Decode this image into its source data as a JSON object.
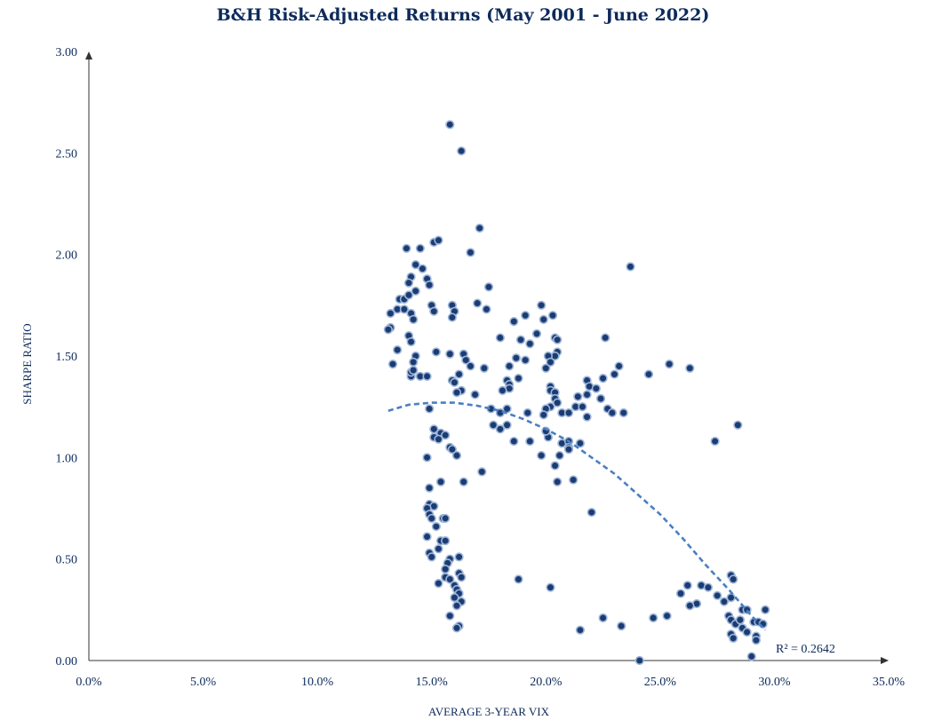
{
  "chart_data": {
    "type": "scatter",
    "title": "B&H Risk-Adjusted Returns (May 2001 - June 2022)",
    "xlabel": "AVERAGE 3-YEAR VIX",
    "ylabel": "SHARPE RATIO",
    "xlim": [
      0,
      35
    ],
    "ylim": [
      0,
      3
    ],
    "xticks": [
      "0.0%",
      "5.0%",
      "10.0%",
      "15.0%",
      "20.0%",
      "25.0%",
      "30.0%",
      "35.0%"
    ],
    "yticks": [
      "0.00",
      "0.50",
      "1.00",
      "1.50",
      "2.00",
      "2.50",
      "3.00"
    ],
    "annotation": "R² = 0.2642",
    "trendline": {
      "style": "dashed",
      "color": "#4a7fc2",
      "points": [
        [
          13.1,
          1.23
        ],
        [
          14,
          1.26
        ],
        [
          15,
          1.27
        ],
        [
          16,
          1.27
        ],
        [
          17,
          1.255
        ],
        [
          18,
          1.23
        ],
        [
          19,
          1.19
        ],
        [
          20,
          1.14
        ],
        [
          21,
          1.08
        ],
        [
          22,
          1.0
        ],
        [
          23,
          0.92
        ],
        [
          24,
          0.82
        ],
        [
          25,
          0.72
        ],
        [
          26,
          0.6
        ],
        [
          27,
          0.47
        ],
        [
          28,
          0.35
        ],
        [
          29,
          0.22
        ],
        [
          29.6,
          0.15
        ]
      ]
    },
    "point_color": "#1b3c73",
    "points": [
      [
        15.8,
        2.64
      ],
      [
        16.3,
        2.51
      ],
      [
        17.1,
        2.13
      ],
      [
        15.1,
        2.06
      ],
      [
        15.3,
        2.07
      ],
      [
        13.9,
        2.03
      ],
      [
        14.5,
        2.03
      ],
      [
        16.7,
        2.01
      ],
      [
        23.7,
        1.94
      ],
      [
        14.3,
        1.95
      ],
      [
        14.6,
        1.93
      ],
      [
        14.1,
        1.89
      ],
      [
        14.0,
        1.86
      ],
      [
        14.8,
        1.88
      ],
      [
        14.9,
        1.85
      ],
      [
        14.3,
        1.82
      ],
      [
        17.5,
        1.84
      ],
      [
        13.6,
        1.78
      ],
      [
        13.8,
        1.78
      ],
      [
        14.0,
        1.8
      ],
      [
        13.5,
        1.73
      ],
      [
        13.8,
        1.73
      ],
      [
        14.1,
        1.71
      ],
      [
        13.2,
        1.71
      ],
      [
        14.2,
        1.68
      ],
      [
        15.0,
        1.75
      ],
      [
        15.1,
        1.72
      ],
      [
        15.9,
        1.75
      ],
      [
        16.0,
        1.72
      ],
      [
        15.9,
        1.69
      ],
      [
        17.0,
        1.76
      ],
      [
        17.4,
        1.73
      ],
      [
        19.8,
        1.75
      ],
      [
        20.3,
        1.7
      ],
      [
        19.1,
        1.7
      ],
      [
        18.6,
        1.67
      ],
      [
        19.9,
        1.68
      ],
      [
        13.2,
        1.64
      ],
      [
        13.1,
        1.63
      ],
      [
        14.0,
        1.6
      ],
      [
        14.1,
        1.57
      ],
      [
        13.5,
        1.53
      ],
      [
        14.3,
        1.5
      ],
      [
        14.2,
        1.47
      ],
      [
        13.3,
        1.46
      ],
      [
        14.5,
        1.4
      ],
      [
        14.8,
        1.4
      ],
      [
        14.1,
        1.4
      ],
      [
        14.1,
        1.42
      ],
      [
        14.2,
        1.43
      ],
      [
        15.2,
        1.52
      ],
      [
        15.8,
        1.51
      ],
      [
        16.4,
        1.51
      ],
      [
        16.5,
        1.48
      ],
      [
        17.3,
        1.44
      ],
      [
        16.7,
        1.45
      ],
      [
        18.0,
        1.59
      ],
      [
        18.9,
        1.58
      ],
      [
        19.3,
        1.56
      ],
      [
        19.6,
        1.61
      ],
      [
        20.4,
        1.59
      ],
      [
        20.5,
        1.58
      ],
      [
        20.5,
        1.52
      ],
      [
        20.4,
        1.5
      ],
      [
        20.1,
        1.5
      ],
      [
        19.1,
        1.48
      ],
      [
        18.7,
        1.49
      ],
      [
        18.4,
        1.45
      ],
      [
        20.2,
        1.47
      ],
      [
        20.0,
        1.44
      ],
      [
        22.6,
        1.59
      ],
      [
        23.2,
        1.45
      ],
      [
        23.0,
        1.41
      ],
      [
        24.5,
        1.41
      ],
      [
        25.4,
        1.46
      ],
      [
        26.3,
        1.44
      ],
      [
        16.2,
        1.41
      ],
      [
        15.9,
        1.38
      ],
      [
        16.0,
        1.37
      ],
      [
        16.3,
        1.33
      ],
      [
        16.1,
        1.32
      ],
      [
        16.9,
        1.31
      ],
      [
        18.3,
        1.38
      ],
      [
        18.4,
        1.36
      ],
      [
        18.4,
        1.34
      ],
      [
        18.8,
        1.39
      ],
      [
        18.1,
        1.33
      ],
      [
        20.2,
        1.35
      ],
      [
        20.2,
        1.33
      ],
      [
        20.4,
        1.32
      ],
      [
        20.4,
        1.29
      ],
      [
        21.8,
        1.38
      ],
      [
        21.9,
        1.35
      ],
      [
        22.2,
        1.34
      ],
      [
        22.5,
        1.39
      ],
      [
        21.8,
        1.31
      ],
      [
        21.4,
        1.3
      ],
      [
        22.4,
        1.29
      ],
      [
        20.5,
        1.27
      ],
      [
        20.2,
        1.25
      ],
      [
        20.7,
        1.22
      ],
      [
        21.0,
        1.22
      ],
      [
        21.3,
        1.25
      ],
      [
        21.6,
        1.25
      ],
      [
        22.7,
        1.24
      ],
      [
        22.9,
        1.22
      ],
      [
        23.4,
        1.22
      ],
      [
        20.0,
        1.24
      ],
      [
        19.9,
        1.21
      ],
      [
        19.2,
        1.22
      ],
      [
        18.3,
        1.24
      ],
      [
        18.0,
        1.22
      ],
      [
        17.6,
        1.24
      ],
      [
        17.7,
        1.16
      ],
      [
        18.0,
        1.14
      ],
      [
        18.3,
        1.16
      ],
      [
        18.6,
        1.08
      ],
      [
        19.3,
        1.08
      ],
      [
        20.1,
        1.1
      ],
      [
        20.0,
        1.13
      ],
      [
        20.7,
        1.07
      ],
      [
        21.0,
        1.08
      ],
      [
        21.0,
        1.05
      ],
      [
        21.5,
        1.07
      ],
      [
        21.8,
        1.2
      ],
      [
        21.0,
        1.04
      ],
      [
        20.6,
        1.01
      ],
      [
        20.4,
        0.96
      ],
      [
        19.8,
        1.01
      ],
      [
        20.5,
        0.88
      ],
      [
        21.2,
        0.89
      ],
      [
        27.4,
        1.08
      ],
      [
        28.4,
        1.16
      ],
      [
        14.9,
        1.24
      ],
      [
        15.1,
        1.14
      ],
      [
        15.1,
        1.1
      ],
      [
        15.4,
        1.12
      ],
      [
        15.6,
        1.11
      ],
      [
        15.3,
        1.09
      ],
      [
        15.8,
        1.05
      ],
      [
        15.9,
        1.04
      ],
      [
        16.1,
        1.01
      ],
      [
        14.8,
        1.0
      ],
      [
        15.4,
        0.88
      ],
      [
        16.4,
        0.88
      ],
      [
        17.2,
        0.93
      ],
      [
        14.9,
        0.85
      ],
      [
        14.9,
        0.77
      ],
      [
        15.1,
        0.76
      ],
      [
        14.8,
        0.75
      ],
      [
        14.9,
        0.72
      ],
      [
        15.0,
        0.7
      ],
      [
        15.5,
        0.7
      ],
      [
        15.6,
        0.7
      ],
      [
        15.2,
        0.66
      ],
      [
        14.8,
        0.61
      ],
      [
        15.4,
        0.59
      ],
      [
        15.6,
        0.59
      ],
      [
        15.3,
        0.55
      ],
      [
        14.9,
        0.53
      ],
      [
        15.0,
        0.51
      ],
      [
        16.2,
        0.51
      ],
      [
        15.8,
        0.5
      ],
      [
        15.7,
        0.48
      ],
      [
        15.6,
        0.45
      ],
      [
        16.2,
        0.43
      ],
      [
        16.3,
        0.41
      ],
      [
        15.6,
        0.41
      ],
      [
        15.8,
        0.4
      ],
      [
        15.3,
        0.38
      ],
      [
        16.0,
        0.37
      ],
      [
        16.1,
        0.35
      ],
      [
        16.2,
        0.33
      ],
      [
        16.0,
        0.31
      ],
      [
        16.3,
        0.29
      ],
      [
        16.1,
        0.27
      ],
      [
        15.8,
        0.22
      ],
      [
        16.2,
        0.17
      ],
      [
        16.1,
        0.16
      ],
      [
        18.8,
        0.4
      ],
      [
        20.2,
        0.36
      ],
      [
        22.0,
        0.73
      ],
      [
        21.5,
        0.15
      ],
      [
        22.5,
        0.21
      ],
      [
        23.3,
        0.17
      ],
      [
        24.7,
        0.21
      ],
      [
        25.3,
        0.22
      ],
      [
        25.9,
        0.33
      ],
      [
        26.2,
        0.37
      ],
      [
        26.6,
        0.28
      ],
      [
        26.3,
        0.27
      ],
      [
        26.8,
        0.37
      ],
      [
        27.1,
        0.36
      ],
      [
        27.5,
        0.32
      ],
      [
        27.8,
        0.29
      ],
      [
        28.1,
        0.42
      ],
      [
        28.2,
        0.4
      ],
      [
        28.1,
        0.31
      ],
      [
        28.0,
        0.22
      ],
      [
        28.1,
        0.2
      ],
      [
        28.3,
        0.18
      ],
      [
        28.1,
        0.13
      ],
      [
        28.2,
        0.11
      ],
      [
        28.6,
        0.25
      ],
      [
        28.8,
        0.25
      ],
      [
        28.5,
        0.2
      ],
      [
        28.6,
        0.16
      ],
      [
        28.8,
        0.14
      ],
      [
        29.1,
        0.19
      ],
      [
        29.3,
        0.19
      ],
      [
        29.2,
        0.12
      ],
      [
        29.2,
        0.1
      ],
      [
        29.5,
        0.18
      ],
      [
        29.6,
        0.25
      ],
      [
        29.0,
        0.02
      ],
      [
        24.1,
        0.0
      ]
    ]
  }
}
